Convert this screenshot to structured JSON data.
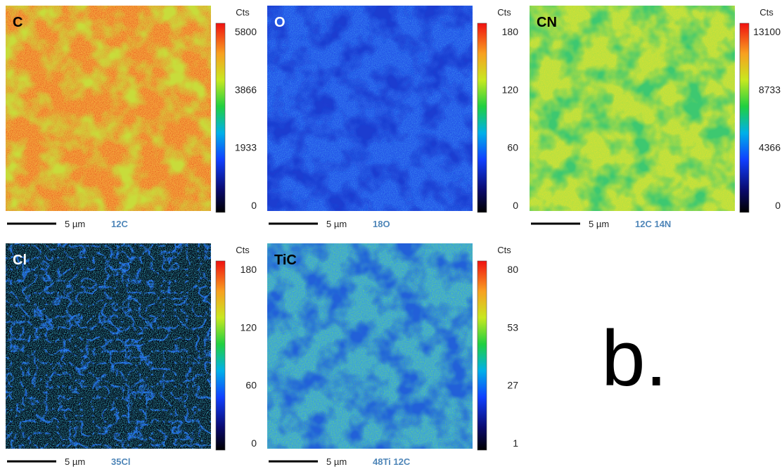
{
  "panels": [
    {
      "label": "C",
      "unit": "Cts",
      "ticks": [
        "5800",
        "3866",
        "1933",
        "0"
      ],
      "scale": "5 µm",
      "ion": "12C"
    },
    {
      "label": "O",
      "unit": "Cts",
      "ticks": [
        "180",
        "120",
        "60",
        "0"
      ],
      "scale": "5 µm",
      "ion": "18O"
    },
    {
      "label": "CN",
      "unit": "Cts",
      "ticks": [
        "13100",
        "8733",
        "4366",
        "0"
      ],
      "scale": "5 µm",
      "ion": "12C 14N"
    },
    {
      "label": "Cl",
      "unit": "Cts",
      "ticks": [
        "180",
        "120",
        "60",
        "0"
      ],
      "scale": "5 µm",
      "ion": "35Cl"
    },
    {
      "label": "TiC",
      "unit": "Cts",
      "ticks": [
        "80",
        "53",
        "27",
        "1"
      ],
      "scale": "5 µm",
      "ion": "48Ti 12C"
    }
  ],
  "figure_label": "b."
}
